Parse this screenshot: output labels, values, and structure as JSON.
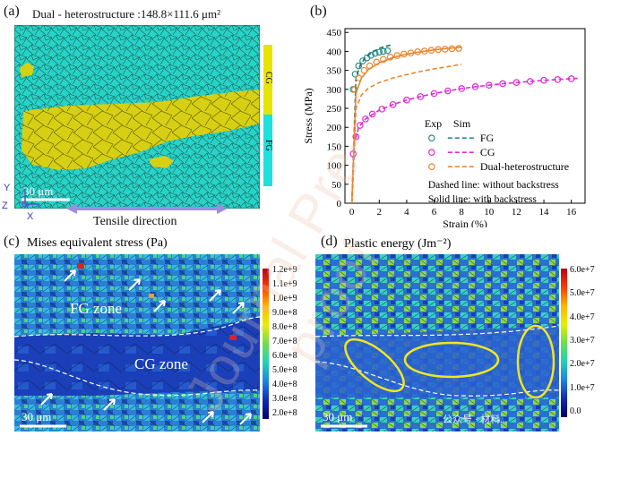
{
  "figure": {
    "panel_a": {
      "label": "(a)",
      "caption": "Dual - heterostructure :148.8×111.6 μm²",
      "scale_bar": "30 μm",
      "tensile_direction": "Tensile direction",
      "legend": [
        "CG",
        "FG"
      ],
      "axes": {
        "y": "Y",
        "z": "Z",
        "x": "X"
      },
      "colors": {
        "cg": "#d7cf14",
        "fg": "#27d3c7"
      }
    },
    "panel_b": {
      "label": "(b)"
    },
    "panel_c": {
      "label": "(c)",
      "title": "Mises equivalent stress (Pa)",
      "zone_fg": "FG zone",
      "zone_cg": "CG zone",
      "scale_bar": "30 μm",
      "colorbar_ticks": [
        "1.2e+9",
        "1.1e+9",
        "1.0e+9",
        "9.0e+8",
        "8.0e+8",
        "7.0e+8",
        "6.0e+8",
        "5.0e+8",
        "4.0e+8",
        "3.0e+8",
        "2.0e+8"
      ]
    },
    "panel_d": {
      "label": "(d)",
      "title": "Plastic energy (Jm⁻²)",
      "scale_bar": "30 μm",
      "colorbar_ticks": [
        "6.0e+7",
        "5.0e+7",
        "4.0e+7",
        "3.0e+7",
        "2.0e+7",
        "1.0e+7",
        "0.0"
      ]
    },
    "watermark": "Journal Pre-proof",
    "source_tag": "公众号 · 材料..."
  },
  "chart_data": {
    "type": "line",
    "title": "",
    "xlabel": "Strain (%)",
    "ylabel": "Stress (MPa)",
    "xlim": [
      -0.5,
      17
    ],
    "ylim": [
      0,
      460
    ],
    "xticks": [
      0,
      2,
      4,
      6,
      8,
      10,
      12,
      14,
      16
    ],
    "yticks": [
      0,
      50,
      100,
      150,
      200,
      250,
      300,
      350,
      400,
      450
    ],
    "legend_header": [
      "Exp",
      "Sim"
    ],
    "legend": [
      "FG",
      "CG",
      "Dual-heterostructure"
    ],
    "notes": [
      "Dashed line: without backstress",
      "Solid line: with backstress"
    ],
    "series": [
      {
        "name": "FG exp",
        "color": "#2a8f8a",
        "marker": "circle",
        "x": [
          0.1,
          0.25,
          0.5,
          0.8,
          1.1,
          1.4,
          1.7,
          2.0,
          2.3,
          2.6
        ],
        "y": [
          300,
          340,
          362,
          375,
          383,
          390,
          395,
          398,
          400,
          402
        ]
      },
      {
        "name": "FG sim dashed",
        "color": "#1d6f74",
        "style": "dashed",
        "x": [
          0,
          0.3,
          0.6,
          1.0,
          1.5,
          2.0,
          2.5,
          3.0
        ],
        "y": [
          0,
          330,
          362,
          385,
          398,
          408,
          414,
          418
        ]
      },
      {
        "name": "CG exp",
        "color": "#dd2bd4",
        "marker": "circle",
        "x": [
          0.1,
          0.3,
          0.6,
          1.0,
          1.5,
          2.2,
          3.0,
          4.0,
          5.0,
          6.0,
          7.0,
          8.0,
          9.0,
          10.0,
          11.0,
          12.0,
          13.0,
          14.0,
          15.0,
          16.0
        ],
        "y": [
          130,
          175,
          205,
          222,
          235,
          248,
          260,
          272,
          281,
          289,
          296,
          302,
          307,
          311,
          315,
          318,
          321,
          324,
          326,
          328
        ]
      },
      {
        "name": "CG sim dashed",
        "color": "#dd2bd4",
        "style": "dashed",
        "x": [
          0,
          0.2,
          0.5,
          1,
          2,
          3,
          4,
          5,
          6,
          7,
          8,
          9,
          10,
          11,
          12,
          13,
          14,
          15,
          16.5
        ],
        "y": [
          0,
          160,
          200,
          222,
          245,
          260,
          272,
          281,
          289,
          296,
          302,
          307,
          311,
          315,
          318,
          321,
          324,
          326,
          329
        ]
      },
      {
        "name": "Dual exp",
        "color": "#e8862e",
        "marker": "circle",
        "x": [
          0.2,
          0.5,
          0.9,
          1.3,
          1.8,
          2.3,
          2.8,
          3.3,
          3.8,
          4.3,
          4.8,
          5.3,
          5.8,
          6.3,
          6.8,
          7.3,
          7.8
        ],
        "y": [
          300,
          330,
          350,
          362,
          372,
          379,
          385,
          389,
          393,
          396,
          399,
          401,
          403,
          405,
          406,
          407,
          408
        ]
      },
      {
        "name": "Dual sim solid",
        "color": "#e8862e",
        "style": "solid",
        "x": [
          0,
          0.3,
          0.7,
          1.2,
          2,
          3,
          4,
          5,
          6,
          7,
          8
        ],
        "y": [
          0,
          290,
          330,
          352,
          370,
          384,
          393,
          399,
          404,
          408,
          411
        ]
      },
      {
        "name": "Dual sim dashed",
        "color": "#e8862e",
        "style": "dashed",
        "x": [
          0,
          0.3,
          0.7,
          1.2,
          2,
          3,
          4,
          5,
          6,
          7,
          8
        ],
        "y": [
          0,
          250,
          285,
          303,
          318,
          330,
          339,
          347,
          354,
          360,
          366
        ]
      }
    ]
  }
}
